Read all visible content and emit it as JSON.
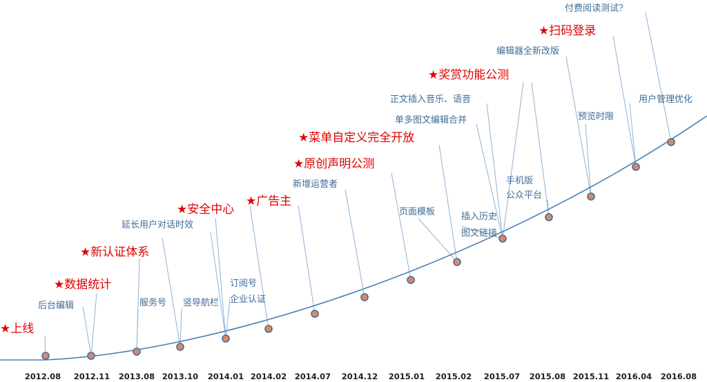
{
  "colors": {
    "curve": "#4a7fb5",
    "leader": "#8db1d4",
    "point_fill": "#e0885a",
    "point_stroke": "#3a6ea5",
    "minor_text": "#3f6c98",
    "major_text": "#e00000",
    "axis_text": "#222222"
  },
  "ticks": [
    "2012.08",
    "2012.11",
    "2013.08",
    "2013.10",
    "2014.01",
    "2014.02",
    "2014.07",
    "2014.12",
    "2015.01",
    "2015.02",
    "2015.07",
    "2015.08",
    "2015.11",
    "2016.04",
    "2016.08"
  ],
  "major_events": [
    "★上线",
    "★数据统计",
    "★新认证体系",
    "★安全中心",
    "★广告主",
    "★原创声明公测",
    "★菜单自定义完全开放",
    "★奖赏功能公测",
    "★扫码登录"
  ],
  "minor_events": [
    "后台编辑",
    "服务号",
    "竖导航栏",
    "延长用户对话时效",
    "订阅号",
    "企业认证",
    "新增运营者",
    "页面模板",
    "插入历史",
    "图文链接",
    "单多图文编辑合并",
    "正文插入音乐、语音",
    "手机版",
    "公众平台",
    "编辑器全新改版",
    "预览时限",
    "用户管理优化",
    "付费阅读测试？"
  ]
}
